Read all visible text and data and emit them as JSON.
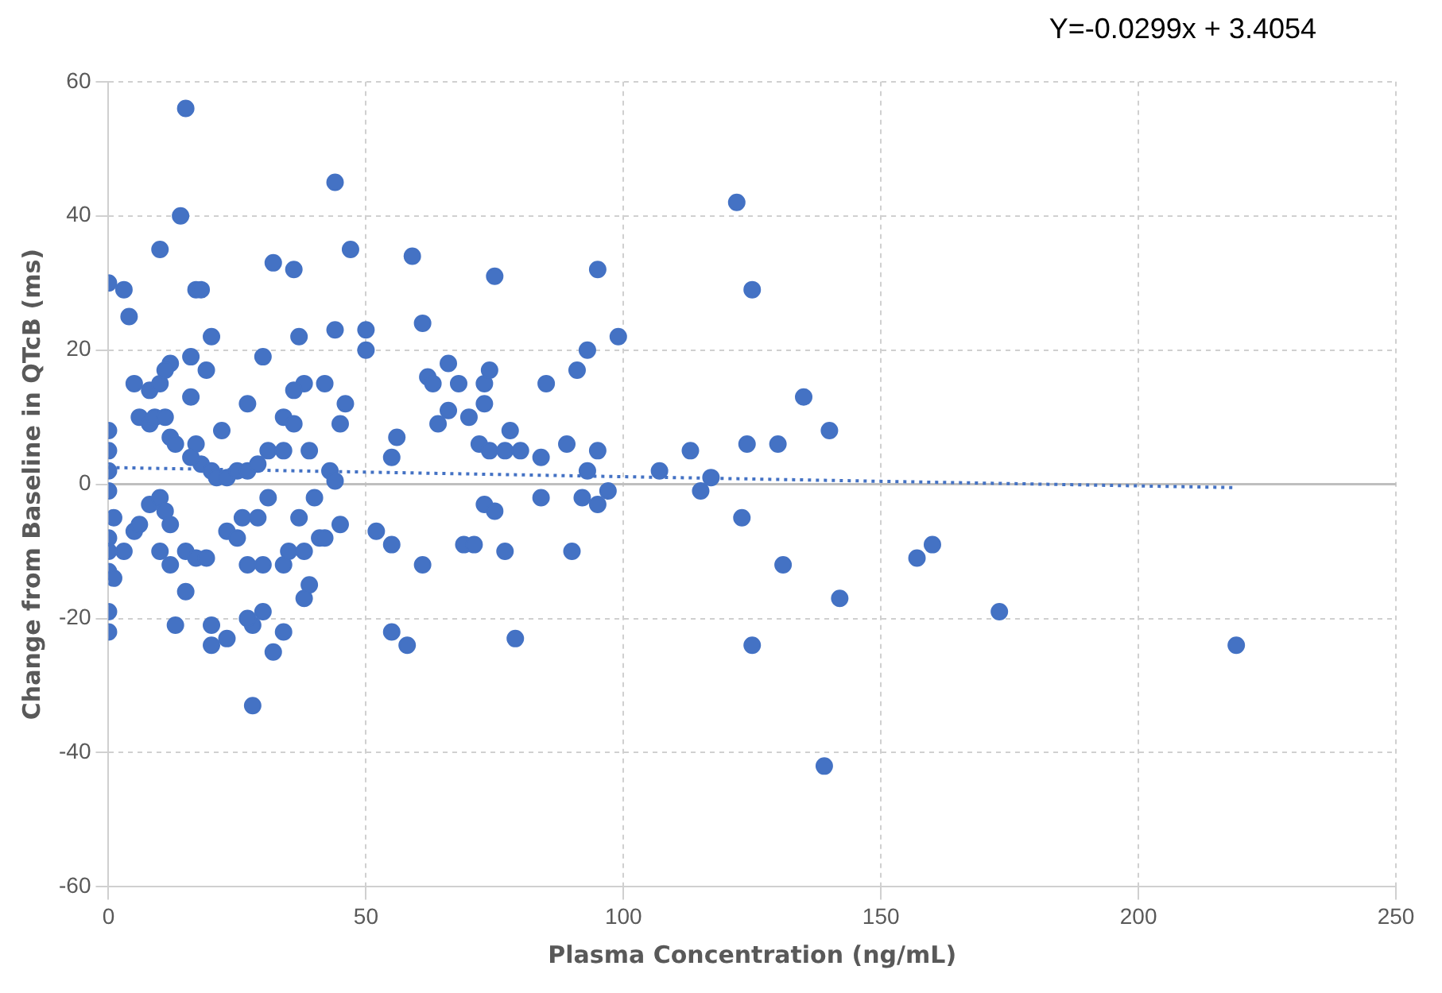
{
  "chart_data": {
    "type": "scatter",
    "xlabel": "Plasma Concentration (ng/mL)",
    "ylabel": "Change from Baseline in QTcB (ms)",
    "annotations": [
      "Y=-0.0299x + 3.4054"
    ],
    "xlim": [
      0,
      250
    ],
    "xticks": [
      0,
      50,
      100,
      150,
      200,
      250
    ],
    "ylim": [
      -60,
      60
    ],
    "yticks": [
      -60,
      -40,
      -20,
      0,
      20,
      40,
      60
    ],
    "grid": true,
    "marker": "circle",
    "ref_lines": [
      {
        "axis": "y",
        "value": 0,
        "color": "#bfbfbf"
      }
    ],
    "series": [
      {
        "color": "#4472c4",
        "x": [
          0,
          3,
          4,
          15,
          14,
          10,
          17,
          18,
          20,
          32,
          36,
          44,
          47,
          59,
          50,
          44,
          37,
          50,
          61,
          75,
          95,
          99,
          122,
          125,
          5,
          8,
          10,
          12,
          11,
          16,
          16,
          19,
          30,
          34,
          27,
          38,
          42,
          36,
          22,
          12,
          6,
          8,
          9,
          11,
          13,
          17,
          18,
          20,
          16,
          21,
          23,
          25,
          27,
          29,
          31,
          34,
          36,
          39,
          43,
          45,
          46,
          44,
          0,
          0,
          0,
          0,
          1,
          0,
          0,
          3,
          5,
          6,
          8,
          10,
          11,
          12,
          10,
          12,
          15,
          17,
          19,
          13,
          15,
          20,
          23,
          20,
          28,
          27,
          30,
          32,
          34,
          38,
          39,
          28,
          0,
          1,
          0,
          0,
          23,
          25,
          27,
          30,
          26,
          29,
          31,
          34,
          35,
          38,
          40,
          41,
          42,
          45,
          37,
          55,
          56,
          52,
          55,
          61,
          55,
          58,
          62,
          63,
          64,
          66,
          68,
          66,
          70,
          73,
          74,
          73,
          72,
          74,
          77,
          78,
          80,
          84,
          85,
          89,
          91,
          93,
          95,
          93,
          97,
          92,
          90,
          73,
          75,
          69,
          71,
          77,
          79,
          84,
          95,
          107,
          113,
          115,
          117,
          123,
          124,
          125,
          130,
          131,
          135,
          140,
          142,
          139,
          157,
          160,
          173,
          219
        ],
        "values": [
          30,
          29,
          25,
          56,
          40,
          35,
          29,
          29,
          22,
          33,
          32,
          45,
          35,
          34,
          23,
          23,
          22,
          20,
          24,
          31,
          32,
          22,
          42,
          29,
          15,
          14,
          15,
          18,
          17,
          19,
          13,
          17,
          19,
          10,
          12,
          15,
          15,
          14,
          8,
          7,
          10,
          9,
          10,
          10,
          6,
          6,
          3,
          2,
          4,
          1,
          1,
          2,
          2,
          3,
          5,
          5,
          9,
          5,
          2,
          9,
          12,
          0.5,
          8,
          5,
          2,
          -1,
          -5,
          -8,
          -10,
          -10,
          -7,
          -6,
          -3,
          -2,
          -4,
          -6,
          -10,
          -12,
          -10,
          -11,
          -11,
          -21,
          -16,
          -21,
          -23,
          -24,
          -21,
          -20,
          -19,
          -25,
          -22,
          -17,
          -15,
          -33,
          -13,
          -14,
          -19,
          -22,
          -7,
          -8,
          -12,
          -12,
          -5,
          -5,
          -2,
          -12,
          -10,
          -10,
          -2,
          -8,
          -8,
          -6,
          -5,
          4,
          7,
          -7,
          -9,
          -12,
          -22,
          -24,
          16,
          15,
          9,
          18,
          15,
          11,
          10,
          15,
          17,
          12,
          6,
          5,
          5,
          8,
          5,
          4,
          15,
          6,
          17,
          20,
          5,
          2,
          -1,
          -2,
          -10,
          -3,
          -4,
          -9,
          -9,
          -10,
          -23,
          -2,
          -3,
          2,
          5,
          -1,
          1,
          -5,
          6,
          -24,
          6,
          -12,
          13,
          8,
          -17,
          -42,
          -11,
          -9,
          -19,
          -24
        ]
      },
      {
        "type": "line",
        "color": "#4472c4",
        "line_style": "dotted",
        "marker": "none",
        "x": [
          0,
          219
        ],
        "values": [
          2.5,
          -0.5
        ]
      }
    ]
  }
}
